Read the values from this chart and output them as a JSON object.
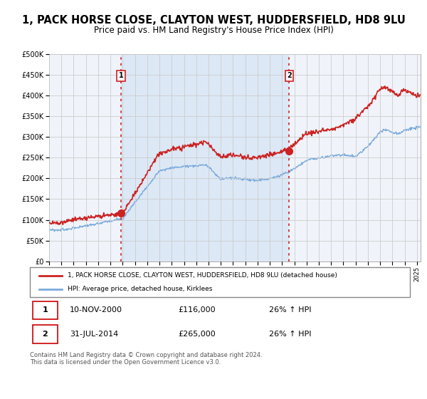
{
  "title": "1, PACK HORSE CLOSE, CLAYTON WEST, HUDDERSFIELD, HD8 9LU",
  "subtitle": "Price paid vs. HM Land Registry's House Price Index (HPI)",
  "title_fontsize": 10.5,
  "subtitle_fontsize": 8.5,
  "ylim": [
    0,
    500000
  ],
  "yticks": [
    0,
    50000,
    100000,
    150000,
    200000,
    250000,
    300000,
    350000,
    400000,
    450000,
    500000
  ],
  "xlim_start": 1995.0,
  "xlim_end": 2025.3,
  "grid_color": "#cccccc",
  "background_color": "#ffffff",
  "plot_bg_color": "#f0f4fa",
  "shade_color": "#dce8f5",
  "legend_label_red": "1, PACK HORSE CLOSE, CLAYTON WEST, HUDDERSFIELD, HD8 9LU (detached house)",
  "legend_label_blue": "HPI: Average price, detached house, Kirklees",
  "red_color": "#cc2222",
  "blue_color": "#7aaadd",
  "annotation1": {
    "num": "1",
    "date": "10-NOV-2000",
    "price": "£116,000",
    "pct": "26% ↑ HPI"
  },
  "annotation2": {
    "num": "2",
    "date": "31-JUL-2014",
    "price": "£265,000",
    "pct": "26% ↑ HPI"
  },
  "footer": "Contains HM Land Registry data © Crown copyright and database right 2024.\nThis data is licensed under the Open Government Licence v3.0.",
  "sale1_x": 2000.86,
  "sale1_y": 116000,
  "sale2_x": 2014.58,
  "sale2_y": 265000,
  "vline1_x": 2000.86,
  "vline2_x": 2014.58
}
